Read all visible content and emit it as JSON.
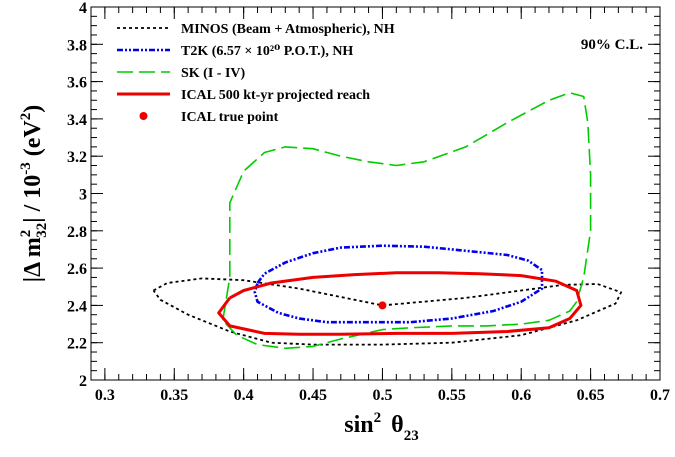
{
  "chart_data": {
    "type": "contour",
    "xlabel": "sin² θ23",
    "ylabel": "|Δ m²32| / 10⁻³ (eV²)",
    "xlim": [
      0.29,
      0.7
    ],
    "ylim": [
      2.0,
      4.0
    ],
    "x_ticks": [
      "0.3",
      "0.35",
      "0.4",
      "0.45",
      "0.5",
      "0.55",
      "0.6",
      "0.65",
      "0.7"
    ],
    "y_ticks": [
      "2",
      "2.2",
      "2.4",
      "2.6",
      "2.8",
      "3",
      "3.2",
      "3.4",
      "3.6",
      "3.8",
      "4"
    ],
    "annotation": "90% C.L.",
    "legend": [
      {
        "label": "MINOS (Beam + Atmospheric), NH",
        "color": "#000000",
        "style": "dotted"
      },
      {
        "label": "T2K (6.57 × 10²⁰ P.O.T.), NH",
        "color": "#0000ee",
        "style": "dash-dot-dot"
      },
      {
        "label": "SK (I - IV)",
        "color": "#00cc00",
        "style": "long-dash"
      },
      {
        "label": "ICAL 500 kt-yr projected reach",
        "color": "#ee0000",
        "style": "solid"
      },
      {
        "label": "ICAL true point",
        "color": "#ee0000",
        "style": "marker"
      }
    ],
    "true_point": {
      "x": 0.5,
      "y": 2.4
    },
    "series": [
      {
        "name": "MINOS (Beam + Atmospheric), NH",
        "color": "#000000",
        "x": [
          0.335,
          0.345,
          0.37,
          0.4,
          0.44,
          0.5,
          0.56,
          0.6,
          0.63,
          0.655,
          0.672,
          0.668,
          0.64,
          0.6,
          0.55,
          0.5,
          0.45,
          0.42,
          0.39,
          0.36,
          0.34,
          0.335
        ],
        "y": [
          2.48,
          2.52,
          2.545,
          2.535,
          2.49,
          2.4,
          2.44,
          2.48,
          2.51,
          2.515,
          2.47,
          2.41,
          2.32,
          2.24,
          2.2,
          2.19,
          2.19,
          2.2,
          2.26,
          2.35,
          2.43,
          2.48
        ]
      },
      {
        "name": "T2K (6.57 × 10²⁰ P.O.T.), NH",
        "color": "#0000ee",
        "x": [
          0.41,
          0.415,
          0.43,
          0.45,
          0.47,
          0.5,
          0.53,
          0.55,
          0.57,
          0.59,
          0.605,
          0.615,
          0.615,
          0.6,
          0.58,
          0.55,
          0.52,
          0.49,
          0.46,
          0.44,
          0.425,
          0.41,
          0.408,
          0.41
        ],
        "y": [
          2.52,
          2.57,
          2.63,
          2.68,
          2.71,
          2.72,
          2.715,
          2.7,
          2.685,
          2.67,
          2.64,
          2.59,
          2.49,
          2.42,
          2.37,
          2.33,
          2.31,
          2.31,
          2.31,
          2.33,
          2.36,
          2.42,
          2.47,
          2.52
        ]
      },
      {
        "name": "SK (I - IV)",
        "color": "#00cc00",
        "x": [
          0.385,
          0.39,
          0.39,
          0.39,
          0.4,
          0.415,
          0.43,
          0.45,
          0.47,
          0.49,
          0.51,
          0.53,
          0.56,
          0.59,
          0.62,
          0.635,
          0.645,
          0.648,
          0.65,
          0.65,
          0.645,
          0.64,
          0.635,
          0.62,
          0.6,
          0.575,
          0.55,
          0.52,
          0.5,
          0.47,
          0.45,
          0.43,
          0.41,
          0.395,
          0.385
        ],
        "y": [
          2.32,
          2.55,
          2.75,
          2.95,
          3.12,
          3.22,
          3.25,
          3.24,
          3.2,
          3.17,
          3.15,
          3.17,
          3.25,
          3.38,
          3.5,
          3.54,
          3.52,
          3.38,
          3.1,
          2.8,
          2.55,
          2.42,
          2.37,
          2.32,
          2.3,
          2.29,
          2.29,
          2.28,
          2.27,
          2.22,
          2.18,
          2.17,
          2.19,
          2.24,
          2.32
        ]
      },
      {
        "name": "ICAL 500 kt-yr projected reach",
        "color": "#ee0000",
        "x": [
          0.39,
          0.4,
          0.42,
          0.45,
          0.48,
          0.51,
          0.54,
          0.57,
          0.6,
          0.625,
          0.64,
          0.643,
          0.635,
          0.62,
          0.59,
          0.55,
          0.51,
          0.47,
          0.44,
          0.415,
          0.39,
          0.382,
          0.39
        ],
        "y": [
          2.44,
          2.48,
          2.52,
          2.55,
          2.565,
          2.575,
          2.575,
          2.57,
          2.56,
          2.53,
          2.48,
          2.4,
          2.33,
          2.28,
          2.26,
          2.25,
          2.25,
          2.245,
          2.245,
          2.25,
          2.29,
          2.36,
          2.44
        ]
      }
    ]
  }
}
